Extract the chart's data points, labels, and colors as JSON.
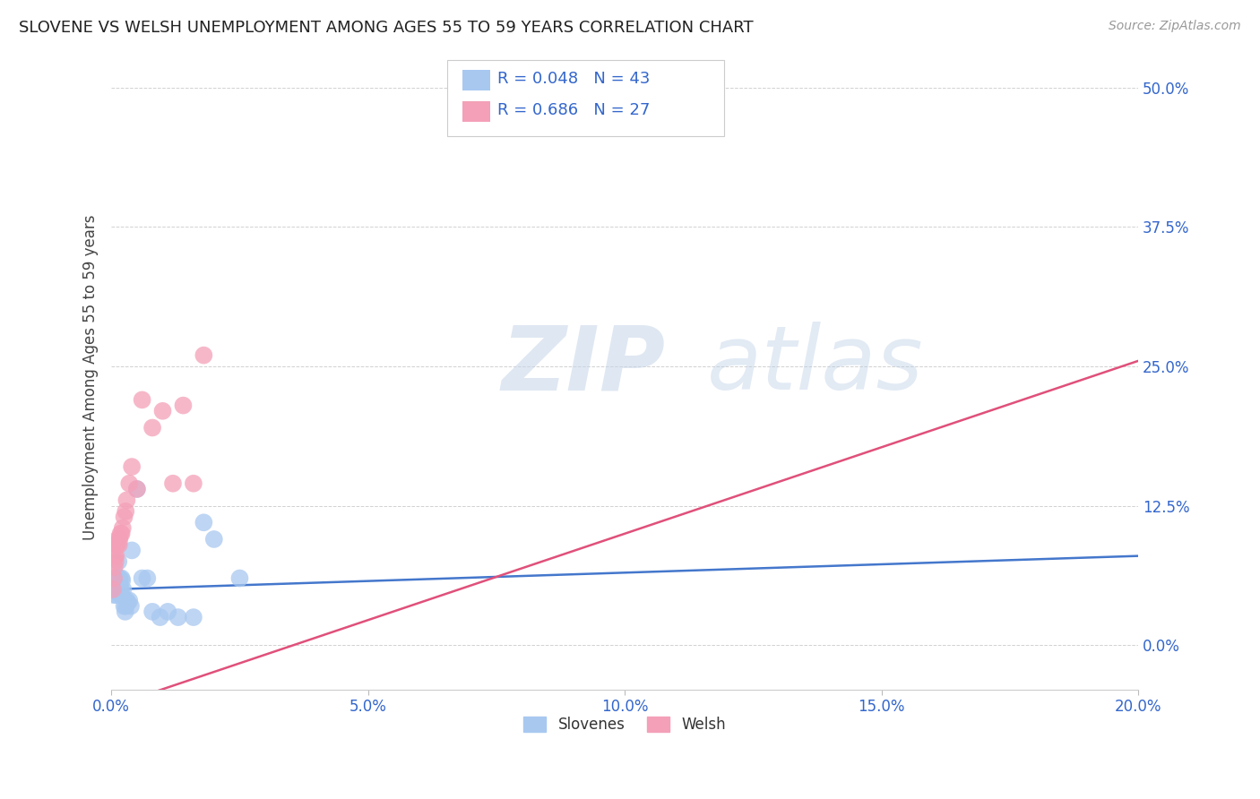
{
  "title": "SLOVENE VS WELSH UNEMPLOYMENT AMONG AGES 55 TO 59 YEARS CORRELATION CHART",
  "source": "Source: ZipAtlas.com",
  "ylabel": "Unemployment Among Ages 55 to 59 years",
  "legend_labels": [
    "Slovenes",
    "Welsh"
  ],
  "slovene_R": "0.048",
  "slovene_N": "43",
  "welsh_R": "0.686",
  "welsh_N": "27",
  "slovene_color": "#a8c8f0",
  "welsh_color": "#f4a0b8",
  "slovene_line_color": "#4477cc",
  "welsh_line_color": "#e0507a",
  "text_color": "#3366cc",
  "title_color": "#222222",
  "watermark_zip": "ZIP",
  "watermark_atlas": "atlas",
  "xlim": [
    0.0,
    0.2
  ],
  "ylim": [
    -0.04,
    0.52
  ],
  "x_tick_vals": [
    0.0,
    0.05,
    0.1,
    0.15,
    0.2
  ],
  "x_tick_labels": [
    "0.0%",
    "5.0%",
    "10.0%",
    "15.0%",
    "20.0%"
  ],
  "y_tick_vals": [
    0.0,
    0.125,
    0.25,
    0.375,
    0.5
  ],
  "y_tick_labels": [
    "0.0%",
    "12.5%",
    "25.0%",
    "37.5%",
    "50.0%"
  ],
  "slovene_x": [
    0.0002,
    0.0003,
    0.0004,
    0.0005,
    0.0006,
    0.0006,
    0.0007,
    0.0008,
    0.0009,
    0.001,
    0.001,
    0.0011,
    0.0012,
    0.0013,
    0.0013,
    0.0014,
    0.0015,
    0.0016,
    0.0017,
    0.0018,
    0.0019,
    0.002,
    0.0021,
    0.0023,
    0.0025,
    0.0027,
    0.0028,
    0.003,
    0.0032,
    0.0035,
    0.0038,
    0.004,
    0.005,
    0.006,
    0.007,
    0.008,
    0.0095,
    0.011,
    0.013,
    0.016,
    0.02,
    0.025,
    0.018
  ],
  "slovene_y": [
    0.058,
    0.055,
    0.06,
    0.045,
    0.05,
    0.058,
    0.05,
    0.052,
    0.048,
    0.045,
    0.055,
    0.048,
    0.05,
    0.052,
    0.06,
    0.075,
    0.055,
    0.06,
    0.05,
    0.045,
    0.05,
    0.06,
    0.058,
    0.05,
    0.035,
    0.03,
    0.035,
    0.04,
    0.038,
    0.04,
    0.035,
    0.085,
    0.14,
    0.06,
    0.06,
    0.03,
    0.025,
    0.03,
    0.025,
    0.025,
    0.095,
    0.06,
    0.11
  ],
  "welsh_x": [
    0.0003,
    0.0005,
    0.0006,
    0.0007,
    0.0008,
    0.0009,
    0.001,
    0.0011,
    0.0013,
    0.0015,
    0.0016,
    0.0018,
    0.002,
    0.0022,
    0.0025,
    0.0028,
    0.003,
    0.0035,
    0.004,
    0.005,
    0.006,
    0.008,
    0.01,
    0.012,
    0.014,
    0.016,
    0.018
  ],
  "welsh_y": [
    0.05,
    0.06,
    0.07,
    0.08,
    0.075,
    0.08,
    0.09,
    0.09,
    0.095,
    0.09,
    0.095,
    0.1,
    0.1,
    0.105,
    0.115,
    0.12,
    0.13,
    0.145,
    0.16,
    0.14,
    0.22,
    0.195,
    0.21,
    0.145,
    0.215,
    0.145,
    0.26
  ]
}
